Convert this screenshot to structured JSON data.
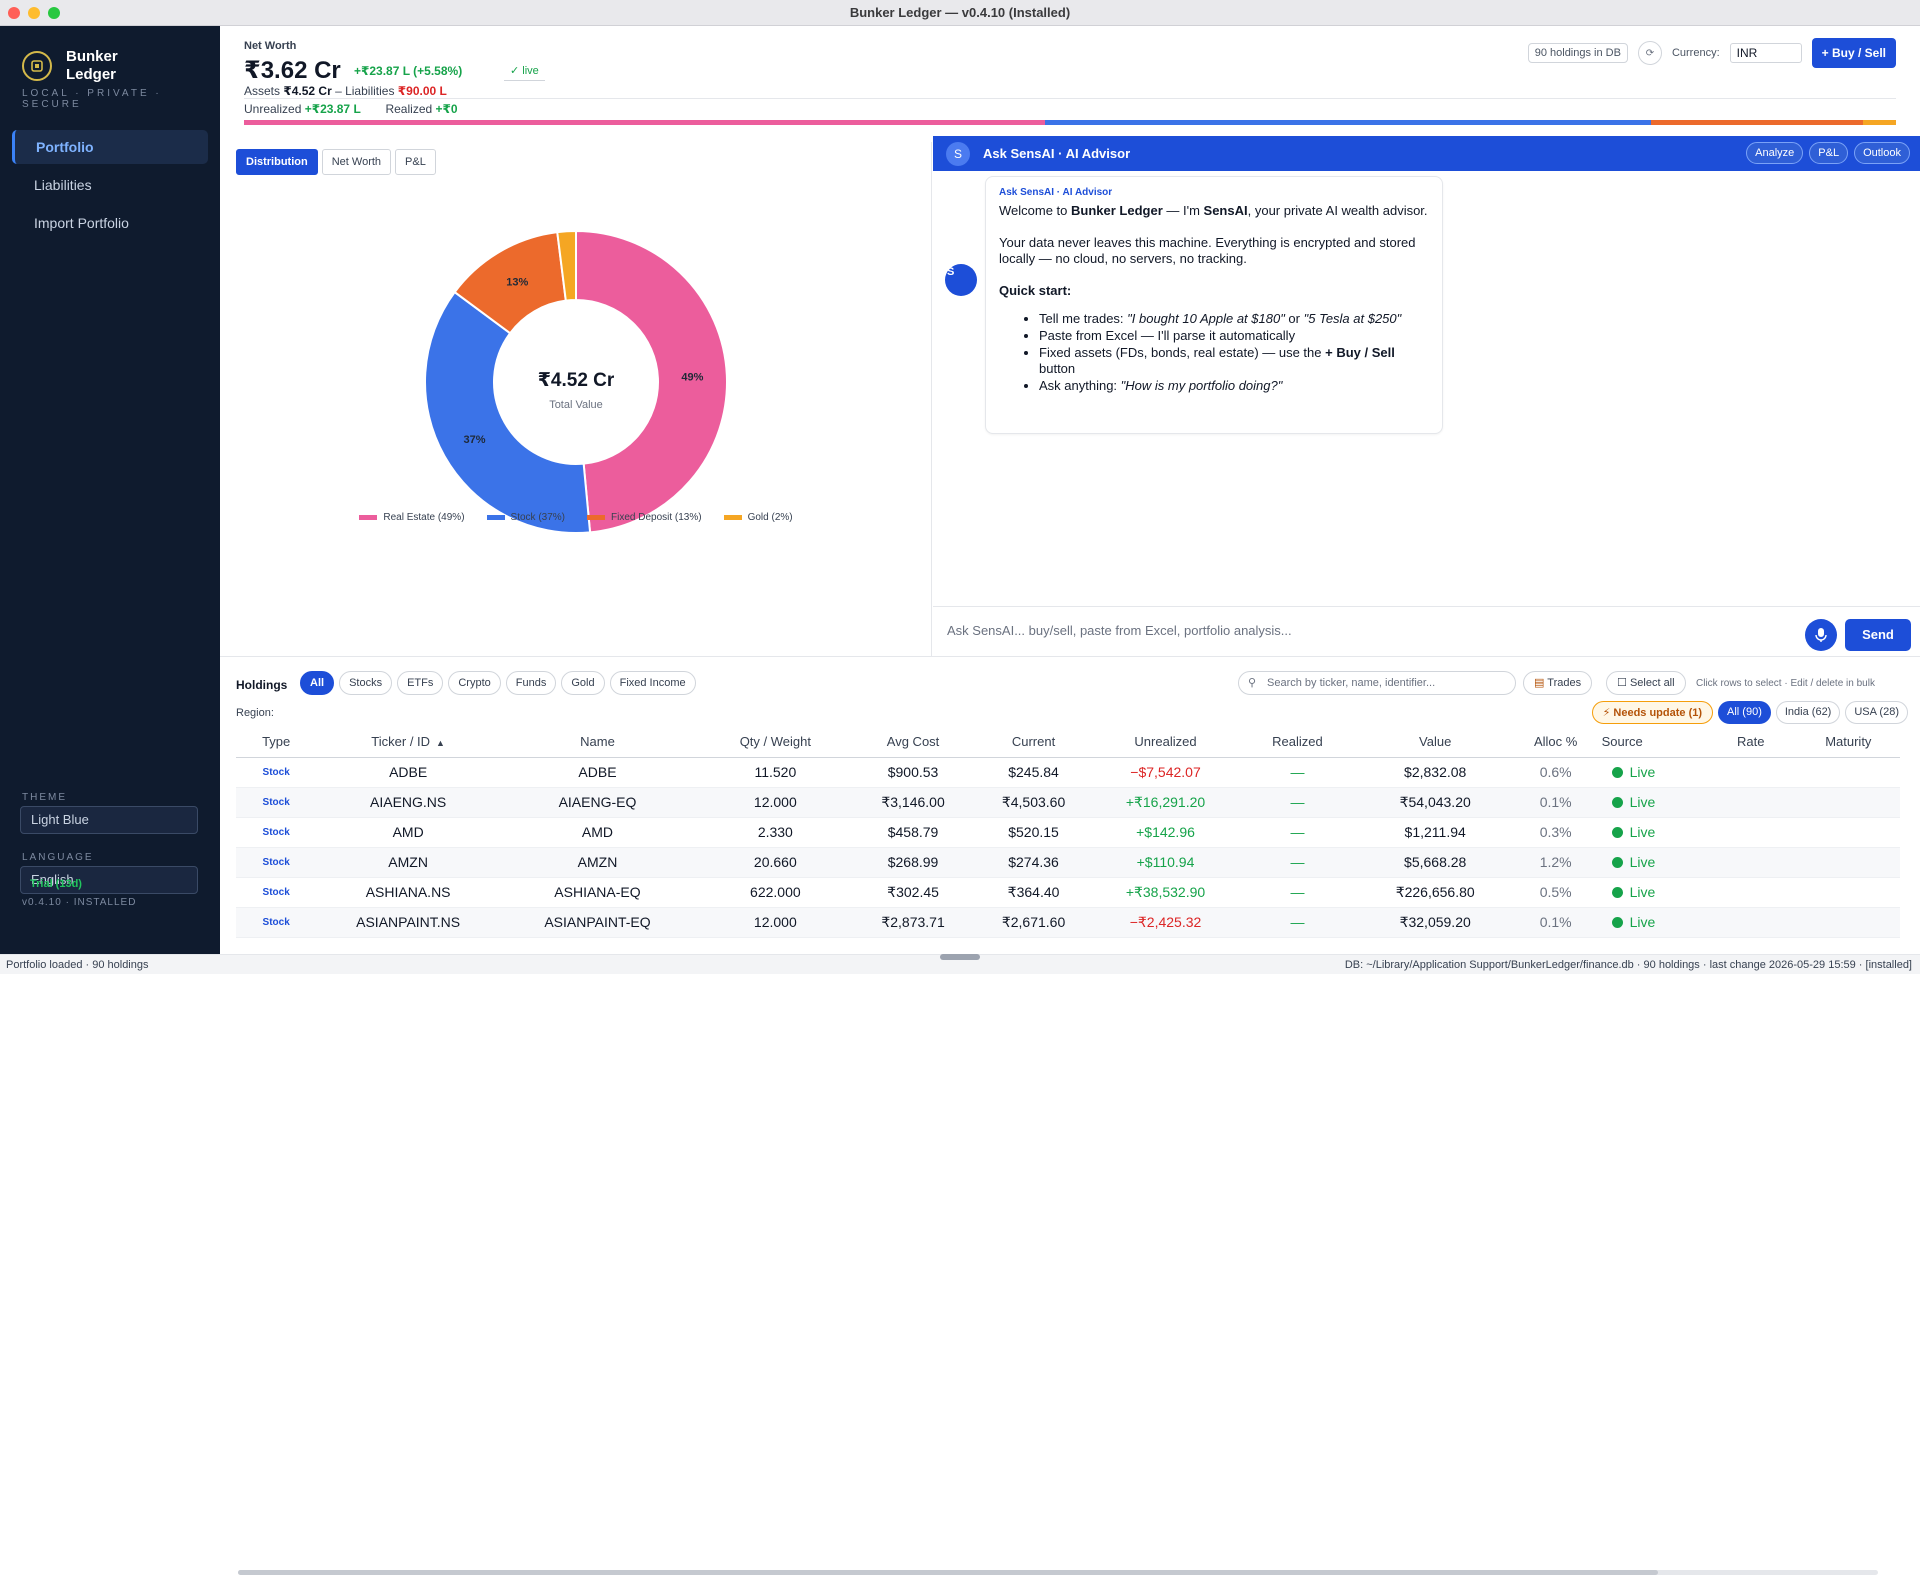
{
  "window": {
    "title": "Bunker Ledger — v0.4.10 (Installed)"
  },
  "sidebar": {
    "app_name": "Bunker Ledger",
    "tagline": "LOCAL · PRIVATE · SECURE",
    "items": [
      {
        "label": "Portfolio",
        "active": true
      },
      {
        "label": "Liabilities"
      },
      {
        "label": "Import Portfolio"
      }
    ],
    "theme_label": "THEME",
    "theme_value": "Light Blue",
    "language_label": "LANGUAGE",
    "language_value": "English",
    "trial": "Trial (13d)",
    "version": "v0.4.10 · INSTALLED"
  },
  "header": {
    "label": "Net Worth",
    "value": "₹3.62 Cr",
    "change": "+₹23.87 L (+5.58%)",
    "live": "✓ live",
    "assets_label": "Assets",
    "assets_value": "₹4.52 Cr",
    "liab_label": "– Liabilities",
    "liab_value": "₹90.00 L",
    "unrealized_label": "Unrealized",
    "unrealized_value": "+₹23.87 L",
    "realized_label": "Realized",
    "realized_value": "+₹0",
    "holdings_count": "90 holdings in DB",
    "currency_label": "Currency:",
    "currency_value": "INR",
    "buy_sell": "+ Buy / Sell"
  },
  "chart_tabs": [
    {
      "label": "Distribution",
      "active": true
    },
    {
      "label": "Net Worth"
    },
    {
      "label": "P&L"
    }
  ],
  "chart_data": {
    "type": "pie",
    "donut": true,
    "center_value": "₹4.52 Cr",
    "center_label": "Total Value",
    "categories": [
      "Real Estate",
      "Stock",
      "Fixed Deposit",
      "Gold"
    ],
    "values": [
      49,
      37,
      13,
      2
    ],
    "labels": [
      "49%",
      "37%",
      "13%",
      ""
    ],
    "legend": [
      "Real Estate (49%)",
      "Stock (37%)",
      "Fixed Deposit (13%)",
      "Gold (2%)"
    ],
    "colors": [
      "#ec5d9c",
      "#3b73e8",
      "#ec6a2c",
      "#f5a623"
    ],
    "legend_position": "bottom"
  },
  "ai": {
    "avatar": "S",
    "title": "Ask SensAI · AI Advisor",
    "actions": [
      "Analyze",
      "P&L",
      "Outlook"
    ],
    "msg_from": "Ask SensAI · AI Advisor",
    "msg_avatar": "S",
    "w1": "Welcome to ",
    "w2": "Bunker Ledger",
    "w3": " — I'm ",
    "w4": "SensAI",
    "w5": ", your private AI wealth advisor.",
    "para2": "Your data never leaves this machine. Everything is encrypted and stored locally — no cloud, no servers, no tracking.",
    "quick_start": "Quick start:",
    "b1a": "Tell me trades: ",
    "b1b": "\"I bought 10 Apple at $180\"",
    "b1c": " or ",
    "b1d": "\"5 Tesla at $250\"",
    "b2": "Paste from Excel — I'll parse it automatically",
    "b3a": "Fixed assets (FDs, bonds, real estate) — use the ",
    "b3b": "+ Buy / Sell",
    "b3c": " button",
    "b4a": "Ask anything: ",
    "b4b": "\"How is my portfolio doing?\"",
    "input_placeholder": "Ask SensAI... buy/sell, paste from Excel, portfolio analysis...",
    "send": "Send"
  },
  "holdings": {
    "title": "Holdings",
    "filters": [
      {
        "label": "All",
        "active": true
      },
      {
        "label": "Stocks"
      },
      {
        "label": "ETFs"
      },
      {
        "label": "Crypto"
      },
      {
        "label": "Funds"
      },
      {
        "label": "Gold"
      },
      {
        "label": "Fixed Income"
      }
    ],
    "search_placeholder": "Search by ticker, name, identifier...",
    "trades": "Trades",
    "select_all": "Select all",
    "hint": "Click rows to select · Edit / delete in bulk",
    "region_label": "Region:",
    "needs_update": "⚡ Needs update (1)",
    "regions": [
      {
        "label": "All (90)",
        "active": true
      },
      {
        "label": "India (62)"
      },
      {
        "label": "USA (28)"
      }
    ],
    "columns": [
      "Type",
      "Ticker / ID",
      "Name",
      "Qty / Weight",
      "Avg Cost",
      "Current",
      "Unrealized",
      "Realized",
      "Value",
      "Alloc %",
      "Source",
      "Rate",
      "Maturity"
    ],
    "sort_indicator": "▲",
    "rows": [
      {
        "type": "Stock",
        "ticker": "ADBE",
        "name": "ADBE",
        "qty": "11.520",
        "avg": "$900.53",
        "cur": "$245.84",
        "unreal": "−$7,542.07",
        "unreal_pos": false,
        "realized": "—",
        "value": "$2,832.08",
        "alloc": "0.6%",
        "source": "Live"
      },
      {
        "type": "Stock",
        "ticker": "AIAENG.NS",
        "name": "AIAENG-EQ",
        "qty": "12.000",
        "avg": "₹3,146.00",
        "cur": "₹4,503.60",
        "unreal": "+₹16,291.20",
        "unreal_pos": true,
        "realized": "—",
        "value": "₹54,043.20",
        "alloc": "0.1%",
        "source": "Live"
      },
      {
        "type": "Stock",
        "ticker": "AMD",
        "name": "AMD",
        "qty": "2.330",
        "avg": "$458.79",
        "cur": "$520.15",
        "unreal": "+$142.96",
        "unreal_pos": true,
        "realized": "—",
        "value": "$1,211.94",
        "alloc": "0.3%",
        "source": "Live"
      },
      {
        "type": "Stock",
        "ticker": "AMZN",
        "name": "AMZN",
        "qty": "20.660",
        "avg": "$268.99",
        "cur": "$274.36",
        "unreal": "+$110.94",
        "unreal_pos": true,
        "realized": "—",
        "value": "$5,668.28",
        "alloc": "1.2%",
        "source": "Live"
      },
      {
        "type": "Stock",
        "ticker": "ASHIANA.NS",
        "name": "ASHIANA-EQ",
        "qty": "622.000",
        "avg": "₹302.45",
        "cur": "₹364.40",
        "unreal": "+₹38,532.90",
        "unreal_pos": true,
        "realized": "—",
        "value": "₹226,656.80",
        "alloc": "0.5%",
        "source": "Live"
      },
      {
        "type": "Stock",
        "ticker": "ASIANPAINT.NS",
        "name": "ASIANPAINT-EQ",
        "qty": "12.000",
        "avg": "₹2,873.71",
        "cur": "₹2,671.60",
        "unreal": "−₹2,425.32",
        "unreal_pos": false,
        "realized": "—",
        "value": "₹32,059.20",
        "alloc": "0.1%",
        "source": "Live"
      }
    ]
  },
  "status": {
    "left": "Portfolio loaded · 90 holdings",
    "right": "DB: ~/Library/Application Support/BunkerLedger/finance.db  ·  90 holdings  ·  last change 2026-05-29 15:59  ·  [installed]"
  },
  "icons": [
    "close-dot",
    "minimize-dot",
    "zoom-dot",
    "bunker-logo-icon",
    "refresh-icon",
    "search-icon",
    "trades-icon",
    "checkbox-icon",
    "mic-icon",
    "sort-asc-icon",
    "live-dot-icon"
  ]
}
